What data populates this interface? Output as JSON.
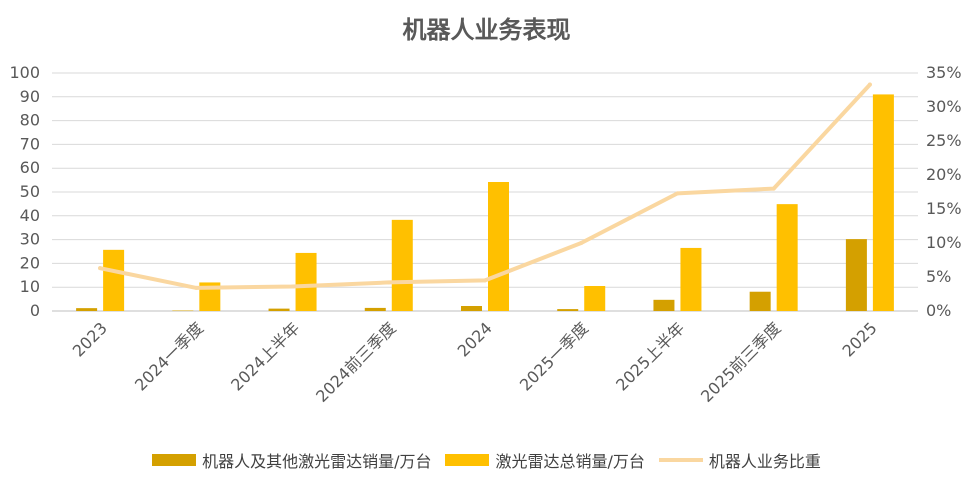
{
  "chart_data": {
    "type": "bar",
    "title": "机器人业务表现",
    "categories": [
      "2023",
      "2024一季度",
      "2024上半年",
      "2024前三季度",
      "2024",
      "2025一季度",
      "2025上半年",
      "2025前三季度",
      "2025"
    ],
    "series": [
      {
        "name": "机器人及其他激光雷达销量/万台",
        "type": "bar",
        "axis": "left",
        "color": "#D4A000",
        "values": [
          1.2,
          0.2,
          1.0,
          1.3,
          2.1,
          0.8,
          4.7,
          8.1,
          30.2
        ]
      },
      {
        "name": "激光雷达总销量/万台",
        "type": "bar",
        "axis": "left",
        "color": "#FFC000",
        "values": [
          25.7,
          12.0,
          24.4,
          38.3,
          54.2,
          10.5,
          26.5,
          44.9,
          91.0
        ]
      },
      {
        "name": "机器人业务比重",
        "type": "line",
        "axis": "right",
        "color": "#FAD7A0",
        "values": [
          0.063,
          0.034,
          0.036,
          0.042,
          0.045,
          0.1,
          0.173,
          0.18,
          0.333
        ]
      }
    ],
    "y_left": {
      "min": 0,
      "max": 100,
      "step": 10,
      "ticks": [
        "0",
        "10",
        "20",
        "30",
        "40",
        "50",
        "60",
        "70",
        "80",
        "90",
        "100"
      ]
    },
    "y_right": {
      "min": 0,
      "max": 0.35,
      "step": 0.05,
      "ticks": [
        "0%",
        "5%",
        "10%",
        "15%",
        "20%",
        "25%",
        "30%",
        "35%"
      ]
    },
    "grid": true,
    "legend_position": "bottom"
  }
}
